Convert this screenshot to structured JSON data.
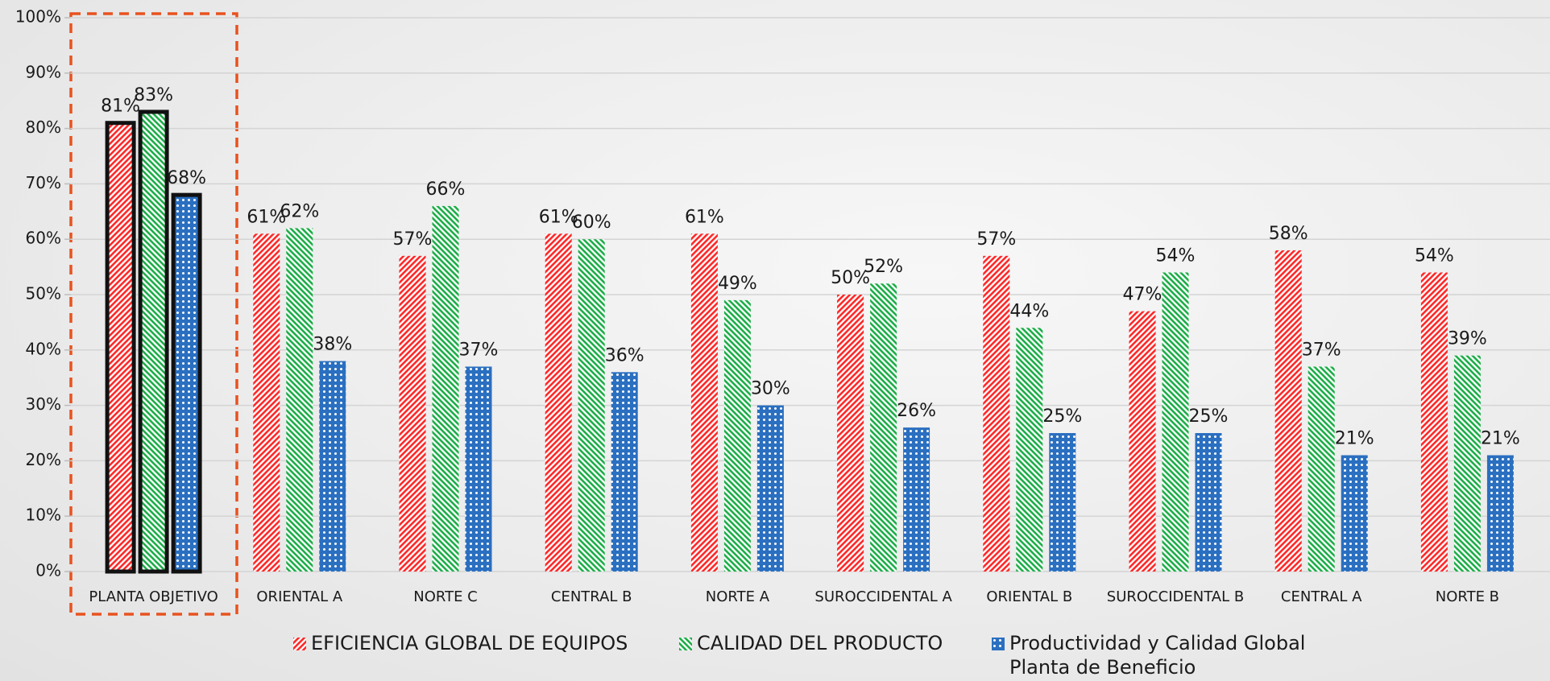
{
  "chart_data": {
    "type": "bar",
    "categories": [
      "PLANTA OBJETIVO",
      "ORIENTAL A",
      "NORTE C",
      "CENTRAL B",
      "NORTE A",
      "SUROCCIDENTAL A",
      "ORIENTAL B",
      "SUROCCIDENTAL B",
      "CENTRAL A",
      "NORTE B"
    ],
    "series": [
      {
        "name": "EFICIENCIA GLOBAL DE EQUIPOS",
        "color": "#ff2a2a",
        "pattern": "stripes-right",
        "values": [
          81,
          61,
          57,
          61,
          61,
          50,
          57,
          47,
          58,
          54
        ],
        "value_labels": [
          "81%",
          "61%",
          "57%",
          "61%",
          "61%",
          "50%",
          "57%",
          "47%",
          "58%",
          "54%"
        ]
      },
      {
        "name": "CALIDAD DEL PRODUCTO",
        "color": "#1fae4a",
        "pattern": "stripes-left",
        "values": [
          83,
          62,
          66,
          60,
          49,
          52,
          44,
          54,
          37,
          39
        ],
        "value_labels": [
          "83%",
          "62%",
          "66%",
          "60%",
          "49%",
          "52%",
          "44%",
          "54%",
          "37%",
          "39%"
        ]
      },
      {
        "name": "Productividad y Calidad Global Planta de Beneficio",
        "color": "#2a6fc0",
        "pattern": "dots",
        "values": [
          68,
          38,
          37,
          36,
          30,
          26,
          25,
          25,
          21,
          21
        ],
        "value_labels": [
          "68%",
          "38%",
          "37%",
          "36%",
          "30%",
          "26%",
          "25%",
          "25%",
          "21%",
          "21%"
        ]
      }
    ],
    "ylim": [
      0,
      100
    ],
    "yticks": [
      {
        "value": 0,
        "label": "0%"
      },
      {
        "value": 10,
        "label": "10%"
      },
      {
        "value": 20,
        "label": "20%"
      },
      {
        "value": 30,
        "label": "30%"
      },
      {
        "value": 40,
        "label": "40%"
      },
      {
        "value": 50,
        "label": "50%"
      },
      {
        "value": 60,
        "label": "60%"
      },
      {
        "value": 70,
        "label": "70%"
      },
      {
        "value": 80,
        "label": "80%"
      },
      {
        "value": 90,
        "label": "90%"
      },
      {
        "value": 100,
        "label": "100%"
      }
    ],
    "grid": true
  }
}
